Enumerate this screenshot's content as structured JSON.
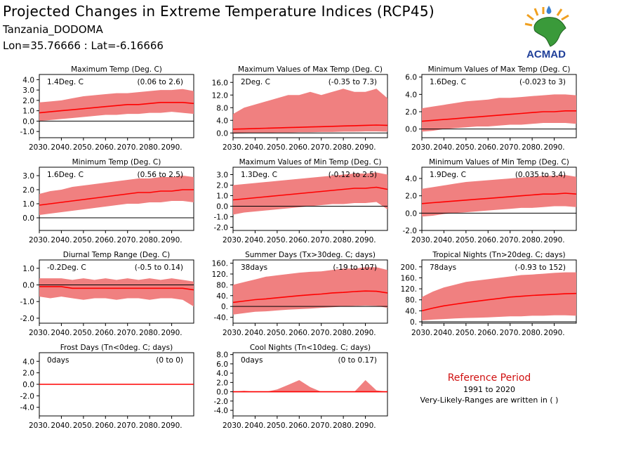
{
  "header": {
    "title": "Projected Changes in Extreme Temperature Indices (RCP45)",
    "location": "Tanzania_DODOMA",
    "coordinates": "Lon=35.76666 : Lat=-6.16666"
  },
  "logo": {
    "text": "ACMAD"
  },
  "reference": {
    "label": "Reference Period",
    "years": "1991 to 2020",
    "note": "Very-Likely-Ranges are written in ( )"
  },
  "colors": {
    "band": "#f08080",
    "line": "#ff0000",
    "zero": "#000000",
    "logo_text": "#1f3f99",
    "logo_map": "#3a9a3a",
    "logo_rays": "#f0a020"
  },
  "chart_data": [
    {
      "type": "area",
      "title": "Maximum Temp (Deg. C)",
      "mean_label": "1.4Deg. C",
      "range_label": "(0.06 to 2.6)",
      "x_ticks": [
        "2030.",
        "2040.",
        "2050.",
        "2060.",
        "2070.",
        "2080.",
        "2090."
      ],
      "y_ticks": [
        "-1.0",
        "0.0",
        "1.0",
        "2.0",
        "3.0",
        "4.0"
      ],
      "ylim": [
        -1.6,
        4.5
      ],
      "x": [
        2030,
        2035,
        2040,
        2045,
        2050,
        2055,
        2060,
        2065,
        2070,
        2075,
        2080,
        2085,
        2090,
        2095,
        2100
      ],
      "series": [
        {
          "role": "mean",
          "values": [
            0.8,
            0.9,
            1.0,
            1.1,
            1.2,
            1.3,
            1.4,
            1.5,
            1.6,
            1.6,
            1.7,
            1.8,
            1.8,
            1.8,
            1.7
          ]
        },
        {
          "role": "lower",
          "values": [
            0.0,
            0.1,
            0.2,
            0.3,
            0.4,
            0.5,
            0.6,
            0.6,
            0.7,
            0.7,
            0.8,
            0.8,
            0.9,
            0.8,
            0.7
          ]
        },
        {
          "role": "upper",
          "values": [
            1.8,
            1.9,
            2.0,
            2.2,
            2.4,
            2.5,
            2.6,
            2.7,
            2.7,
            2.8,
            2.9,
            3.0,
            3.0,
            3.1,
            2.9
          ]
        }
      ]
    },
    {
      "type": "area",
      "title": "Maximum Values of Max Temp (Deg. C)",
      "mean_label": "2Deg. C",
      "range_label": "(-0.35 to 7.3)",
      "x_ticks": [
        "2030.",
        "2040.",
        "2050.",
        "2060.",
        "2070.",
        "2080.",
        "2090."
      ],
      "y_ticks": [
        "0.0",
        "4.0",
        "8.0",
        "12.0",
        "16.0"
      ],
      "ylim": [
        -1.5,
        18.5
      ],
      "x": [
        2030,
        2035,
        2040,
        2045,
        2050,
        2055,
        2060,
        2065,
        2070,
        2075,
        2080,
        2085,
        2090,
        2095,
        2100
      ],
      "series": [
        {
          "role": "mean",
          "values": [
            1.2,
            1.3,
            1.4,
            1.5,
            1.6,
            1.7,
            1.8,
            1.9,
            2.0,
            2.1,
            2.2,
            2.3,
            2.4,
            2.5,
            2.4
          ]
        },
        {
          "role": "lower",
          "values": [
            -0.2,
            -0.1,
            0.0,
            0.0,
            0.1,
            0.1,
            0.2,
            0.2,
            0.3,
            0.3,
            0.4,
            0.4,
            0.5,
            0.5,
            0.4
          ]
        },
        {
          "role": "upper",
          "values": [
            6.0,
            8.0,
            9.0,
            10.0,
            11.0,
            12.0,
            12.0,
            13.0,
            12.0,
            13.0,
            14.0,
            13.0,
            13.0,
            14.0,
            11.0
          ]
        }
      ]
    },
    {
      "type": "area",
      "title": "Minimum Values of Max Temp (Deg. C)",
      "mean_label": "1.6Deg. C",
      "range_label": "(-0.023 to 3)",
      "x_ticks": [
        "2030.",
        "2040.",
        "2050.",
        "2060.",
        "2070.",
        "2080.",
        "2090."
      ],
      "y_ticks": [
        "0.0",
        "2.0",
        "4.0",
        "6.0"
      ],
      "ylim": [
        -1.0,
        6.3
      ],
      "x": [
        2030,
        2035,
        2040,
        2045,
        2050,
        2055,
        2060,
        2065,
        2070,
        2075,
        2080,
        2085,
        2090,
        2095,
        2100
      ],
      "series": [
        {
          "role": "mean",
          "values": [
            0.9,
            1.0,
            1.1,
            1.2,
            1.3,
            1.4,
            1.5,
            1.6,
            1.7,
            1.8,
            1.9,
            2.0,
            2.0,
            2.1,
            2.1
          ]
        },
        {
          "role": "lower",
          "values": [
            -0.3,
            -0.2,
            0.0,
            0.1,
            0.2,
            0.3,
            0.3,
            0.4,
            0.5,
            0.5,
            0.6,
            0.7,
            0.7,
            0.7,
            0.6
          ]
        },
        {
          "role": "upper",
          "values": [
            2.4,
            2.6,
            2.8,
            3.0,
            3.2,
            3.3,
            3.4,
            3.6,
            3.6,
            3.7,
            3.8,
            3.9,
            4.0,
            4.0,
            3.9
          ]
        }
      ]
    },
    {
      "type": "area",
      "title": "Minimum Temp (Deg. C)",
      "mean_label": "1.6Deg. C",
      "range_label": "(0.56 to 2.5)",
      "x_ticks": [
        "2030.",
        "2040.",
        "2050.",
        "2060.",
        "2070.",
        "2080.",
        "2090."
      ],
      "y_ticks": [
        "0.0",
        "1.0",
        "2.0",
        "3.0"
      ],
      "ylim": [
        -0.9,
        3.6
      ],
      "x": [
        2030,
        2035,
        2040,
        2045,
        2050,
        2055,
        2060,
        2065,
        2070,
        2075,
        2080,
        2085,
        2090,
        2095,
        2100
      ],
      "series": [
        {
          "role": "mean",
          "values": [
            0.9,
            1.0,
            1.1,
            1.2,
            1.3,
            1.4,
            1.5,
            1.6,
            1.7,
            1.8,
            1.8,
            1.9,
            1.9,
            2.0,
            2.0
          ]
        },
        {
          "role": "lower",
          "values": [
            0.2,
            0.3,
            0.4,
            0.5,
            0.6,
            0.7,
            0.8,
            0.9,
            1.0,
            1.0,
            1.1,
            1.1,
            1.2,
            1.2,
            1.1
          ]
        },
        {
          "role": "upper",
          "values": [
            1.7,
            1.9,
            2.0,
            2.2,
            2.3,
            2.4,
            2.5,
            2.6,
            2.7,
            2.8,
            2.8,
            2.9,
            2.9,
            3.0,
            2.9
          ]
        }
      ]
    },
    {
      "type": "area",
      "title": "Maximum Values of Min Temp (Deg. C)",
      "mean_label": "1.3Deg. C",
      "range_label": "(-0.12 to 2.5)",
      "x_ticks": [
        "2030.",
        "2040.",
        "2050.",
        "2060.",
        "2070.",
        "2080.",
        "2090."
      ],
      "y_ticks": [
        "-2.0",
        "-1.0",
        "0.0",
        "1.0",
        "2.0",
        "3.0"
      ],
      "ylim": [
        -2.3,
        3.7
      ],
      "x": [
        2030,
        2035,
        2040,
        2045,
        2050,
        2055,
        2060,
        2065,
        2070,
        2075,
        2080,
        2085,
        2090,
        2095,
        2100
      ],
      "series": [
        {
          "role": "mean",
          "values": [
            0.6,
            0.7,
            0.8,
            0.9,
            1.0,
            1.1,
            1.2,
            1.3,
            1.4,
            1.5,
            1.6,
            1.7,
            1.7,
            1.8,
            1.6
          ]
        },
        {
          "role": "lower",
          "values": [
            -0.8,
            -0.6,
            -0.5,
            -0.4,
            -0.3,
            -0.2,
            -0.1,
            0.0,
            0.1,
            0.2,
            0.2,
            0.3,
            0.3,
            0.4,
            -0.3
          ]
        },
        {
          "role": "upper",
          "values": [
            2.0,
            2.1,
            2.2,
            2.3,
            2.4,
            2.5,
            2.6,
            2.7,
            2.8,
            2.9,
            3.0,
            3.1,
            3.1,
            3.2,
            3.0
          ]
        }
      ]
    },
    {
      "type": "area",
      "title": "Minimum Values of Min Temp (Deg. C)",
      "mean_label": "1.9Deg. C",
      "range_label": "(0.035 to 3.4)",
      "x_ticks": [
        "2030.",
        "2040.",
        "2050.",
        "2060.",
        "2070.",
        "2080.",
        "2090."
      ],
      "y_ticks": [
        "-2.0",
        "0.0",
        "2.0",
        "4.0"
      ],
      "ylim": [
        -2.0,
        5.3
      ],
      "x": [
        2030,
        2035,
        2040,
        2045,
        2050,
        2055,
        2060,
        2065,
        2070,
        2075,
        2080,
        2085,
        2090,
        2095,
        2100
      ],
      "series": [
        {
          "role": "mean",
          "values": [
            1.1,
            1.2,
            1.3,
            1.4,
            1.5,
            1.6,
            1.7,
            1.8,
            1.9,
            2.0,
            2.1,
            2.2,
            2.2,
            2.3,
            2.2
          ]
        },
        {
          "role": "lower",
          "values": [
            -0.4,
            -0.3,
            -0.1,
            0.0,
            0.1,
            0.2,
            0.3,
            0.4,
            0.5,
            0.6,
            0.6,
            0.7,
            0.8,
            0.8,
            0.7
          ]
        },
        {
          "role": "upper",
          "values": [
            2.8,
            3.0,
            3.2,
            3.4,
            3.6,
            3.7,
            3.8,
            3.9,
            4.0,
            4.1,
            4.2,
            4.3,
            4.3,
            4.4,
            4.2
          ]
        }
      ]
    },
    {
      "type": "area",
      "title": "Diurnal Temp Range (Deg. C)",
      "mean_label": "-0.2Deg. C",
      "range_label": "(-0.5 to 0.14)",
      "x_ticks": [
        "2030.",
        "2040.",
        "2050.",
        "2060.",
        "2070.",
        "2080.",
        "2090."
      ],
      "y_ticks": [
        "-2.0",
        "-1.0",
        "0.0",
        "1.0"
      ],
      "ylim": [
        -2.3,
        1.5
      ],
      "x": [
        2030,
        2035,
        2040,
        2045,
        2050,
        2055,
        2060,
        2065,
        2070,
        2075,
        2080,
        2085,
        2090,
        2095,
        2100
      ],
      "series": [
        {
          "role": "mean",
          "values": [
            -0.1,
            -0.1,
            -0.1,
            -0.2,
            -0.2,
            -0.2,
            -0.2,
            -0.2,
            -0.2,
            -0.2,
            -0.2,
            -0.2,
            -0.2,
            -0.2,
            -0.3
          ]
        },
        {
          "role": "lower",
          "values": [
            -0.7,
            -0.8,
            -0.7,
            -0.8,
            -0.9,
            -0.8,
            -0.8,
            -0.9,
            -0.8,
            -0.8,
            -0.9,
            -0.8,
            -0.8,
            -0.9,
            -1.3
          ]
        },
        {
          "role": "upper",
          "values": [
            0.4,
            0.4,
            0.4,
            0.3,
            0.4,
            0.3,
            0.4,
            0.3,
            0.4,
            0.3,
            0.4,
            0.3,
            0.4,
            0.3,
            0.2
          ]
        }
      ]
    },
    {
      "type": "area",
      "title": "Summer Days (Tx>30deg. C; days)",
      "mean_label": "38days",
      "range_label": "(-19 to 107)",
      "x_ticks": [
        "2030.",
        "2040.",
        "2050.",
        "2060.",
        "2070.",
        "2080.",
        "2090."
      ],
      "y_ticks": [
        "-40.",
        "0.",
        "40.",
        "80.",
        "120.",
        "160."
      ],
      "ylim": [
        -62,
        172
      ],
      "x": [
        2030,
        2035,
        2040,
        2045,
        2050,
        2055,
        2060,
        2065,
        2070,
        2075,
        2080,
        2085,
        2090,
        2095,
        2100
      ],
      "series": [
        {
          "role": "mean",
          "values": [
            15,
            20,
            25,
            28,
            32,
            36,
            40,
            43,
            46,
            50,
            52,
            55,
            57,
            56,
            50
          ]
        },
        {
          "role": "lower",
          "values": [
            -30,
            -25,
            -20,
            -18,
            -15,
            -12,
            -10,
            -8,
            -5,
            -3,
            0,
            2,
            3,
            2,
            -5
          ]
        },
        {
          "role": "upper",
          "values": [
            80,
            90,
            100,
            110,
            115,
            120,
            125,
            128,
            130,
            135,
            140,
            140,
            145,
            145,
            135
          ]
        }
      ]
    },
    {
      "type": "area",
      "title": "Tropical Nights (Tn>20deg. C; days)",
      "mean_label": "78days",
      "range_label": "(-0.93 to 152)",
      "x_ticks": [
        "2030.",
        "2040.",
        "2050.",
        "2060.",
        "2070.",
        "2080.",
        "2090."
      ],
      "y_ticks": [
        "0.",
        "40.",
        "80.",
        "120.",
        "160.",
        "200."
      ],
      "ylim": [
        -5,
        225
      ],
      "x": [
        2030,
        2035,
        2040,
        2045,
        2050,
        2055,
        2060,
        2065,
        2070,
        2075,
        2080,
        2085,
        2090,
        2095,
        2100
      ],
      "series": [
        {
          "role": "mean",
          "values": [
            40,
            50,
            58,
            64,
            70,
            75,
            80,
            85,
            90,
            93,
            96,
            98,
            100,
            102,
            103
          ]
        },
        {
          "role": "lower",
          "values": [
            5,
            8,
            10,
            12,
            14,
            15,
            16,
            18,
            20,
            20,
            22,
            22,
            24,
            24,
            22
          ]
        },
        {
          "role": "upper",
          "values": [
            90,
            110,
            125,
            135,
            145,
            150,
            155,
            160,
            165,
            170,
            172,
            175,
            178,
            180,
            180
          ]
        }
      ]
    },
    {
      "type": "area",
      "title": "Frost Days (Tn<0deg. C; days)",
      "mean_label": "0days",
      "range_label": "(0 to 0)",
      "x_ticks": [
        "2030.",
        "2040.",
        "2050.",
        "2060.",
        "2070.",
        "2080.",
        "2090."
      ],
      "y_ticks": [
        "-4.0",
        "-2.0",
        "0.0",
        "2.0",
        "4.0"
      ],
      "ylim": [
        -5.5,
        5.5
      ],
      "x": [
        2030,
        2035,
        2040,
        2045,
        2050,
        2055,
        2060,
        2065,
        2070,
        2075,
        2080,
        2085,
        2090,
        2095,
        2100
      ],
      "series": [
        {
          "role": "mean",
          "values": [
            0,
            0,
            0,
            0,
            0,
            0,
            0,
            0,
            0,
            0,
            0,
            0,
            0,
            0,
            0
          ]
        },
        {
          "role": "lower",
          "values": [
            0,
            0,
            0,
            0,
            0,
            0,
            0,
            0,
            0,
            0,
            0,
            0,
            0,
            0,
            0
          ]
        },
        {
          "role": "upper",
          "values": [
            0,
            0,
            0,
            0,
            0,
            0,
            0,
            0,
            0,
            0,
            0,
            0,
            0,
            0,
            0
          ]
        }
      ]
    },
    {
      "type": "area",
      "title": "Cool Nights (Tn<10deg. C; days)",
      "mean_label": "0days",
      "range_label": "(0 to 0.17)",
      "x_ticks": [
        "2030.",
        "2040.",
        "2050.",
        "2060.",
        "2070.",
        "2080.",
        "2090."
      ],
      "y_ticks": [
        "-4.0",
        "-2.0",
        "0.0",
        "2.0",
        "4.0",
        "6.0",
        "8.0"
      ],
      "ylim": [
        -5.2,
        8.4
      ],
      "x": [
        2030,
        2035,
        2040,
        2045,
        2050,
        2055,
        2060,
        2065,
        2070,
        2075,
        2080,
        2085,
        2090,
        2095,
        2100
      ],
      "series": [
        {
          "role": "mean",
          "values": [
            0,
            0,
            0,
            0,
            0,
            0,
            0,
            0,
            0,
            0,
            0,
            0,
            0,
            0,
            0
          ]
        },
        {
          "role": "lower",
          "values": [
            0,
            0,
            0,
            0,
            0,
            0,
            0,
            0,
            0,
            0,
            0,
            0,
            0,
            0,
            0
          ]
        },
        {
          "role": "upper",
          "values": [
            0,
            0.2,
            0,
            0,
            0.5,
            1.5,
            2.5,
            1.0,
            0,
            0,
            0,
            0,
            2.5,
            0.3,
            0
          ]
        }
      ]
    }
  ]
}
